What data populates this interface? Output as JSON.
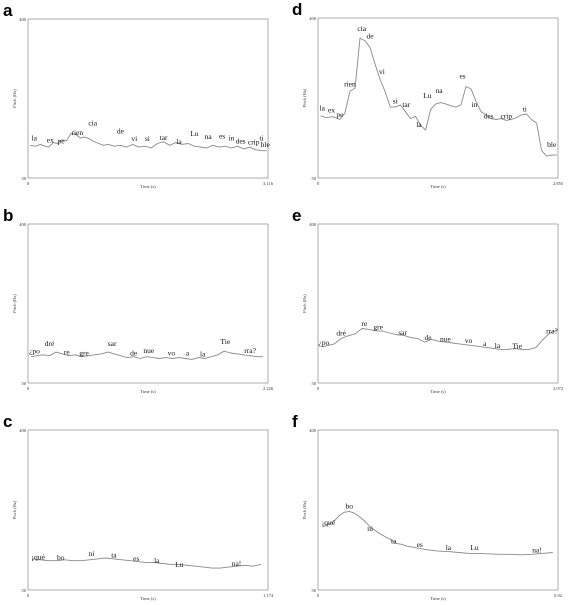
{
  "figure": {
    "panels": [
      {
        "letter": "a",
        "ymax_label": "400",
        "ymin_label": "50",
        "x0_label": "0",
        "xend_label": "3.116",
        "xlabel": "Time (s)",
        "ylabel": "Pitch (Hz)",
        "syllables": [
          "la",
          "ex",
          "pe",
          "rien",
          "cia",
          "de",
          "vi",
          "si",
          "tar",
          "la",
          "Lu",
          "na",
          "es",
          "in",
          "des",
          "crip",
          "ti",
          "ble"
        ]
      },
      {
        "letter": "b",
        "ymax_label": "400",
        "ymin_label": "50",
        "x0_label": "0",
        "xend_label": "2.226",
        "xlabel": "Time (s)",
        "ylabel": "Pitch (Hz)",
        "syllables": [
          "¿po",
          "dré",
          "re",
          "gre",
          "sar",
          "de",
          "nue",
          "vo",
          "a",
          "la",
          "Tie",
          "rra?"
        ]
      },
      {
        "letter": "c",
        "ymax_label": "400",
        "ymin_label": "50",
        "x0_label": "0",
        "xend_label": "1.174",
        "xlabel": "Time (s)",
        "ylabel": "Pitch (Hz)",
        "syllables": [
          "¡qué",
          "bo",
          "ni",
          "ta",
          "es",
          "la",
          "Lu",
          "na!"
        ]
      },
      {
        "letter": "d",
        "ymax_label": "400",
        "ymin_label": "50",
        "x0_label": "0",
        "xend_label": "2.855",
        "xlabel": "Time (s)",
        "ylabel": "Pitch (Hz)",
        "syllables": [
          "la",
          "ex",
          "pe",
          "rien",
          "cia",
          "de",
          "vi",
          "si",
          "tar",
          "la",
          "Lu",
          "na",
          "es",
          "in",
          "des",
          "crip",
          "ti",
          "ble"
        ]
      },
      {
        "letter": "e",
        "ymax_label": "400",
        "ymin_label": "50",
        "x0_label": "0",
        "xend_label": "2.072",
        "xlabel": "Time (s)",
        "ylabel": "Pitch (Hz)",
        "syllables": [
          "¿po",
          "dré",
          "re",
          "gre",
          "sar",
          "de",
          "nue",
          "vo",
          "a",
          "la",
          "Tie",
          "rra?"
        ]
      },
      {
        "letter": "f",
        "ymax_label": "400",
        "ymin_label": "50",
        "x0_label": "0",
        "xend_label": "0.92",
        "xlabel": "Time (s)",
        "ylabel": "Pitch (Hz)",
        "syllables": [
          "¡qué",
          "bo",
          "ni",
          "ta",
          "es",
          "la",
          "Lu",
          "na!"
        ]
      }
    ]
  },
  "chart_data": [
    {
      "type": "line",
      "xlabel": "Time (s)",
      "ylabel": "Pitch (Hz)",
      "xlim": [
        0,
        3.116
      ],
      "ylim": [
        50,
        400
      ],
      "series": [
        {
          "x": [
            0.03,
            0.1,
            0.16,
            0.22,
            0.27,
            0.33,
            0.38,
            0.44,
            0.5,
            0.56,
            0.62,
            0.68,
            0.74,
            0.8,
            0.86,
            0.92,
            0.98,
            1.04,
            1.12,
            1.2,
            1.28,
            1.36,
            1.44,
            1.52,
            1.6,
            1.68,
            1.76,
            1.84,
            1.92,
            2.0,
            2.08,
            2.16,
            2.24,
            2.32,
            2.4,
            2.48,
            2.56,
            2.64,
            2.72,
            2.8,
            2.88,
            2.96,
            3.04,
            3.1
          ],
          "y": [
            122,
            120,
            124,
            120,
            118,
            128,
            126,
            134,
            132,
            148,
            146,
            138,
            140,
            136,
            130,
            126,
            122,
            124,
            120,
            122,
            118,
            124,
            118,
            120,
            116,
            126,
            130,
            122,
            128,
            124,
            126,
            120,
            118,
            116,
            122,
            118,
            120,
            116,
            120,
            114,
            118,
            112,
            110,
            110
          ]
        }
      ],
      "labels": [
        {
          "text": "la",
          "x": 0.08,
          "y": 133
        },
        {
          "text": "ex",
          "x": 0.29,
          "y": 128
        },
        {
          "text": "pe",
          "x": 0.43,
          "y": 126
        },
        {
          "text": "rien",
          "x": 0.64,
          "y": 145
        },
        {
          "text": "cia",
          "x": 0.84,
          "y": 166
        },
        {
          "text": "de",
          "x": 1.2,
          "y": 148
        },
        {
          "text": "vi",
          "x": 1.38,
          "y": 131
        },
        {
          "text": "si",
          "x": 1.55,
          "y": 131
        },
        {
          "text": "tar",
          "x": 1.76,
          "y": 134
        },
        {
          "text": "la",
          "x": 1.96,
          "y": 125
        },
        {
          "text": "Lu",
          "x": 2.16,
          "y": 142
        },
        {
          "text": "na",
          "x": 2.34,
          "y": 136
        },
        {
          "text": "es",
          "x": 2.52,
          "y": 137
        },
        {
          "text": "in",
          "x": 2.64,
          "y": 133
        },
        {
          "text": "des",
          "x": 2.76,
          "y": 126
        },
        {
          "text": "crip",
          "x": 2.93,
          "y": 124
        },
        {
          "text": "ti",
          "x": 3.03,
          "y": 133
        },
        {
          "text": "ble",
          "x": 3.08,
          "y": 118
        }
      ]
    },
    {
      "type": "line",
      "xlabel": "Time (s)",
      "ylabel": "Pitch (Hz)",
      "xlim": [
        0,
        2.226
      ],
      "ylim": [
        50,
        400
      ],
      "series": [
        {
          "x": [
            0.03,
            0.08,
            0.14,
            0.2,
            0.26,
            0.32,
            0.38,
            0.44,
            0.5,
            0.56,
            0.62,
            0.68,
            0.74,
            0.8,
            0.86,
            0.92,
            0.98,
            1.04,
            1.1,
            1.16,
            1.22,
            1.28,
            1.34,
            1.4,
            1.46,
            1.52,
            1.58,
            1.64,
            1.7,
            1.76,
            1.82,
            1.88,
            1.94,
            2.0,
            2.06,
            2.12,
            2.18
          ],
          "y": [
            108,
            110,
            112,
            110,
            118,
            114,
            110,
            112,
            108,
            110,
            112,
            114,
            118,
            114,
            110,
            106,
            108,
            104,
            108,
            106,
            104,
            106,
            104,
            106,
            104,
            102,
            106,
            104,
            108,
            112,
            120,
            116,
            114,
            112,
            110,
            108,
            108
          ]
        }
      ],
      "labels": [
        {
          "text": "¿po",
          "x": 0.06,
          "y": 115
        },
        {
          "text": "dré",
          "x": 0.2,
          "y": 131
        },
        {
          "text": "re",
          "x": 0.36,
          "y": 113
        },
        {
          "text": "gre",
          "x": 0.52,
          "y": 111
        },
        {
          "text": "sar",
          "x": 0.78,
          "y": 131
        },
        {
          "text": "de",
          "x": 0.98,
          "y": 110
        },
        {
          "text": "nue",
          "x": 1.12,
          "y": 116
        },
        {
          "text": "vo",
          "x": 1.33,
          "y": 110
        },
        {
          "text": "a",
          "x": 1.48,
          "y": 110
        },
        {
          "text": "la",
          "x": 1.62,
          "y": 108
        },
        {
          "text": "Tie",
          "x": 1.83,
          "y": 136
        },
        {
          "text": "rra?",
          "x": 2.06,
          "y": 116
        }
      ]
    },
    {
      "type": "line",
      "xlabel": "Time (s)",
      "ylabel": "Pitch (Hz)",
      "xlim": [
        0,
        1.174
      ],
      "ylim": [
        50,
        400
      ],
      "series": [
        {
          "x": [
            0.02,
            0.06,
            0.1,
            0.14,
            0.18,
            0.22,
            0.26,
            0.3,
            0.34,
            0.38,
            0.42,
            0.46,
            0.5,
            0.54,
            0.58,
            0.62,
            0.66,
            0.7,
            0.74,
            0.78,
            0.82,
            0.86,
            0.9,
            0.94,
            0.98,
            1.02,
            1.06,
            1.1,
            1.14
          ],
          "y": [
            118,
            116,
            114,
            114,
            116,
            114,
            114,
            116,
            118,
            120,
            118,
            116,
            114,
            112,
            110,
            110,
            108,
            106,
            106,
            104,
            102,
            100,
            98,
            98,
            100,
            102,
            104,
            102,
            106
          ]
        }
      ],
      "labels": [
        {
          "text": "¡qué",
          "x": 0.05,
          "y": 117
        },
        {
          "text": "bo",
          "x": 0.16,
          "y": 116
        },
        {
          "text": "ni",
          "x": 0.31,
          "y": 124
        },
        {
          "text": "ta",
          "x": 0.42,
          "y": 121
        },
        {
          "text": "es",
          "x": 0.53,
          "y": 113
        },
        {
          "text": "la",
          "x": 0.63,
          "y": 109
        },
        {
          "text": "Lu",
          "x": 0.74,
          "y": 100
        },
        {
          "text": "na!",
          "x": 1.02,
          "y": 103
        }
      ]
    },
    {
      "type": "line",
      "xlabel": "Time (s)",
      "ylabel": "Pitch (Hz)",
      "xlim": [
        0,
        2.855
      ],
      "ylim": [
        50,
        400
      ],
      "series": [
        {
          "x": [
            0.03,
            0.1,
            0.18,
            0.26,
            0.32,
            0.38,
            0.44,
            0.5,
            0.56,
            0.62,
            0.68,
            0.74,
            0.8,
            0.86,
            0.92,
            0.98,
            1.04,
            1.1,
            1.16,
            1.22,
            1.28,
            1.34,
            1.4,
            1.46,
            1.52,
            1.58,
            1.64,
            1.7,
            1.76,
            1.82,
            1.88,
            1.94,
            2.0,
            2.06,
            2.12,
            2.18,
            2.24,
            2.3,
            2.36,
            2.42,
            2.48,
            2.54,
            2.6,
            2.66,
            2.72,
            2.78,
            2.84
          ],
          "y": [
            186,
            182,
            184,
            178,
            192,
            240,
            246,
            356,
            350,
            335,
            298,
            265,
            238,
            205,
            205,
            210,
            195,
            180,
            185,
            165,
            155,
            200,
            212,
            215,
            212,
            208,
            205,
            210,
            250,
            245,
            218,
            195,
            188,
            180,
            178,
            180,
            176,
            178,
            182,
            188,
            190,
            178,
            170,
            110,
            98,
            100,
            100
          ]
        }
      ],
      "labels": [
        {
          "text": "la",
          "x": 0.05,
          "y": 198
        },
        {
          "text": "ex",
          "x": 0.16,
          "y": 193
        },
        {
          "text": "pe",
          "x": 0.26,
          "y": 183
        },
        {
          "text": "rien",
          "x": 0.38,
          "y": 250
        },
        {
          "text": "cia",
          "x": 0.52,
          "y": 372
        },
        {
          "text": "de",
          "x": 0.62,
          "y": 355
        },
        {
          "text": "vi",
          "x": 0.76,
          "y": 277
        },
        {
          "text": "si",
          "x": 0.92,
          "y": 213
        },
        {
          "text": "tar",
          "x": 1.05,
          "y": 205
        },
        {
          "text": "la",
          "x": 1.2,
          "y": 162
        },
        {
          "text": "Lu",
          "x": 1.3,
          "y": 225
        },
        {
          "text": "na",
          "x": 1.44,
          "y": 236
        },
        {
          "text": "es",
          "x": 1.72,
          "y": 268
        },
        {
          "text": "in",
          "x": 1.86,
          "y": 205
        },
        {
          "text": "des",
          "x": 2.03,
          "y": 180
        },
        {
          "text": "crip",
          "x": 2.24,
          "y": 180
        },
        {
          "text": "ti",
          "x": 2.46,
          "y": 196
        },
        {
          "text": "ble",
          "x": 2.78,
          "y": 118
        }
      ]
    },
    {
      "type": "line",
      "xlabel": "Time (s)",
      "ylabel": "Pitch (Hz)",
      "xlim": [
        0,
        2.072
      ],
      "ylim": [
        50,
        400
      ],
      "series": [
        {
          "x": [
            0.03,
            0.08,
            0.14,
            0.2,
            0.26,
            0.32,
            0.38,
            0.44,
            0.5,
            0.56,
            0.62,
            0.68,
            0.74,
            0.8,
            0.86,
            0.92,
            0.98,
            1.04,
            1.1,
            1.16,
            1.22,
            1.28,
            1.34,
            1.4,
            1.46,
            1.52,
            1.58,
            1.64,
            1.7,
            1.76,
            1.82,
            1.88,
            1.94,
            2.0,
            2.06
          ],
          "y": [
            130,
            132,
            136,
            148,
            154,
            158,
            170,
            168,
            165,
            164,
            160,
            156,
            155,
            150,
            148,
            140,
            146,
            142,
            140,
            138,
            136,
            134,
            132,
            130,
            128,
            126,
            124,
            124,
            126,
            124,
            124,
            128,
            145,
            160,
            166
          ]
        }
      ],
      "labels": [
        {
          "text": "¿po",
          "x": 0.05,
          "y": 134
        },
        {
          "text": "dré",
          "x": 0.2,
          "y": 155
        },
        {
          "text": "re",
          "x": 0.4,
          "y": 175
        },
        {
          "text": "gre",
          "x": 0.52,
          "y": 168
        },
        {
          "text": "sar",
          "x": 0.73,
          "y": 156
        },
        {
          "text": "de",
          "x": 0.95,
          "y": 145
        },
        {
          "text": "nue",
          "x": 1.1,
          "y": 141
        },
        {
          "text": "vo",
          "x": 1.3,
          "y": 138
        },
        {
          "text": "a",
          "x": 1.44,
          "y": 131
        },
        {
          "text": "la",
          "x": 1.55,
          "y": 127
        },
        {
          "text": "Tie",
          "x": 1.72,
          "y": 126
        },
        {
          "text": "rra?",
          "x": 2.02,
          "y": 159
        }
      ]
    },
    {
      "type": "line",
      "xlabel": "Time (s)",
      "ylabel": "Pitch (Hz)",
      "xlim": [
        0,
        0.92
      ],
      "ylim": [
        50,
        400
      ],
      "series": [
        {
          "x": [
            0.02,
            0.04,
            0.06,
            0.08,
            0.1,
            0.12,
            0.14,
            0.16,
            0.18,
            0.2,
            0.22,
            0.24,
            0.26,
            0.28,
            0.3,
            0.32,
            0.34,
            0.38,
            0.42,
            0.46,
            0.5,
            0.54,
            0.58,
            0.62,
            0.66,
            0.7,
            0.74,
            0.78,
            0.82,
            0.86,
            0.9
          ],
          "y": [
            188,
            194,
            200,
            212,
            220,
            222,
            218,
            210,
            200,
            188,
            180,
            172,
            166,
            160,
            152,
            150,
            146,
            142,
            138,
            135,
            134,
            132,
            130,
            130,
            129,
            128,
            128,
            127,
            128,
            130,
            132
          ]
        }
      ],
      "labels": [
        {
          "text": "¡qué",
          "x": 0.04,
          "y": 192
        },
        {
          "text": "bo",
          "x": 0.12,
          "y": 228
        },
        {
          "text": "ni",
          "x": 0.2,
          "y": 179
        },
        {
          "text": "ta",
          "x": 0.29,
          "y": 152
        },
        {
          "text": "es",
          "x": 0.39,
          "y": 144
        },
        {
          "text": "la",
          "x": 0.5,
          "y": 137
        },
        {
          "text": "Lu",
          "x": 0.6,
          "y": 137
        },
        {
          "text": "na!",
          "x": 0.84,
          "y": 132
        }
      ]
    }
  ]
}
